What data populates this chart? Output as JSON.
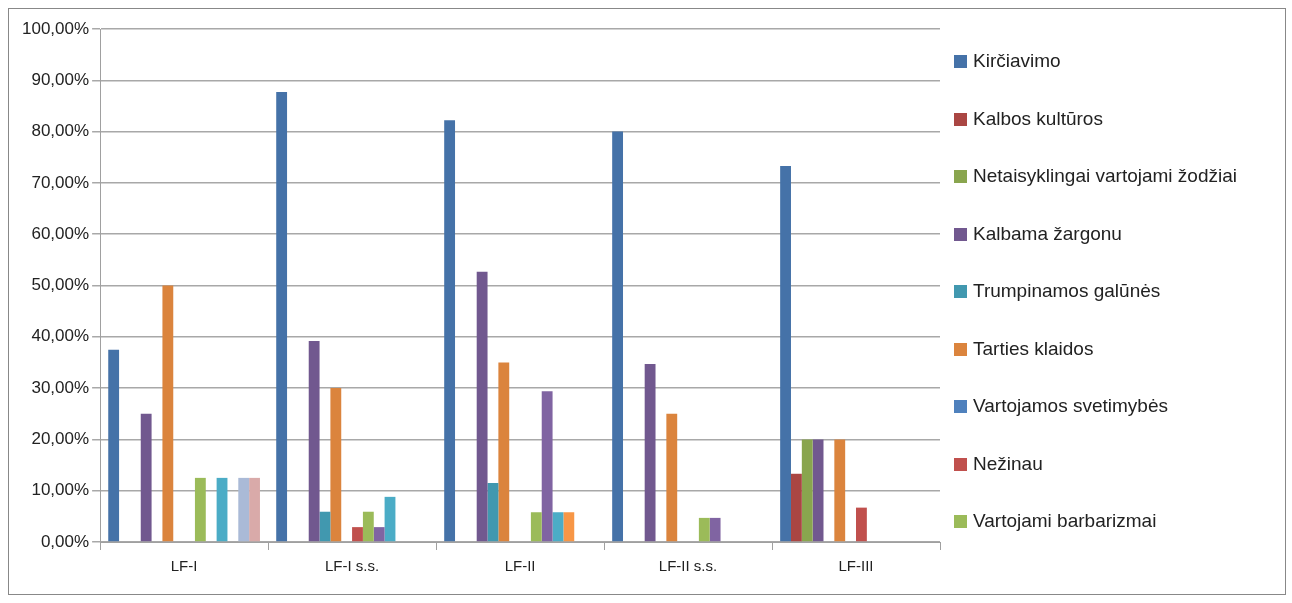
{
  "chart_data": {
    "type": "bar",
    "categories": [
      "LF-I",
      "LF-I s.s.",
      "LF-II",
      "LF-II s.s.",
      "LF-III"
    ],
    "series": [
      {
        "name": "Kirčiavimo",
        "color": "#4572a8",
        "values": [
          37.5,
          87.7,
          82.2,
          80,
          73.3
        ]
      },
      {
        "name": "Kalbos kultūros",
        "color": "#aa4643",
        "values": [
          null,
          null,
          null,
          null,
          13.3
        ]
      },
      {
        "name": "Netaisyklingai vartojami žodžiai",
        "color": "#89a54e",
        "values": [
          null,
          null,
          null,
          null,
          20
        ]
      },
      {
        "name": "Kalbama žargonu",
        "color": "#71588f",
        "values": [
          25,
          39.2,
          52.7,
          34.7,
          20
        ]
      },
      {
        "name": "Trumpinamos galūnės",
        "color": "#4198af",
        "values": [
          null,
          5.9,
          11.5,
          null,
          null
        ]
      },
      {
        "name": "Tarties klaidos",
        "color": "#db843d",
        "values": [
          50,
          30,
          35,
          25,
          20
        ]
      },
      {
        "name": "Vartojamos svetimybės",
        "color": "#4f81bd",
        "values": [
          null,
          null,
          null,
          null,
          null
        ]
      },
      {
        "name": "Nežinau",
        "color": "#c0504d",
        "values": [
          null,
          2.9,
          null,
          null,
          6.7
        ]
      },
      {
        "name": "Vartojami barbarizmai",
        "color": "#9bbb59",
        "values": [
          12.5,
          5.9,
          5.8,
          4.7,
          null
        ]
      },
      {
        "color": "#8064a2",
        "values": [
          null,
          2.9,
          29.4,
          4.7,
          null
        ]
      },
      {
        "color": "#4bacc6",
        "values": [
          12.5,
          8.8,
          5.8,
          null,
          null
        ]
      },
      {
        "color": "#f79646",
        "values": [
          null,
          null,
          5.8,
          null,
          null
        ]
      },
      {
        "color": "#aabad7",
        "values": [
          12.5,
          null,
          null,
          null,
          null
        ]
      },
      {
        "color": "#d9aaa9",
        "values": [
          12.5,
          null,
          null,
          null,
          null
        ]
      }
    ],
    "ylim": [
      0,
      100
    ],
    "yticks": [
      {
        "value": 0,
        "label": "0,00%"
      },
      {
        "value": 10,
        "label": "10,00%"
      },
      {
        "value": 20,
        "label": "20,00%"
      },
      {
        "value": 30,
        "label": "30,00%"
      },
      {
        "value": 40,
        "label": "40,00%"
      },
      {
        "value": 50,
        "label": "50,00%"
      },
      {
        "value": 60,
        "label": "60,00%"
      },
      {
        "value": 70,
        "label": "70,00%"
      },
      {
        "value": 80,
        "label": "80,00%"
      },
      {
        "value": 90,
        "label": "90,00%"
      },
      {
        "value": 100,
        "label": "100,00%"
      }
    ],
    "grid": "y",
    "legend": "right"
  }
}
